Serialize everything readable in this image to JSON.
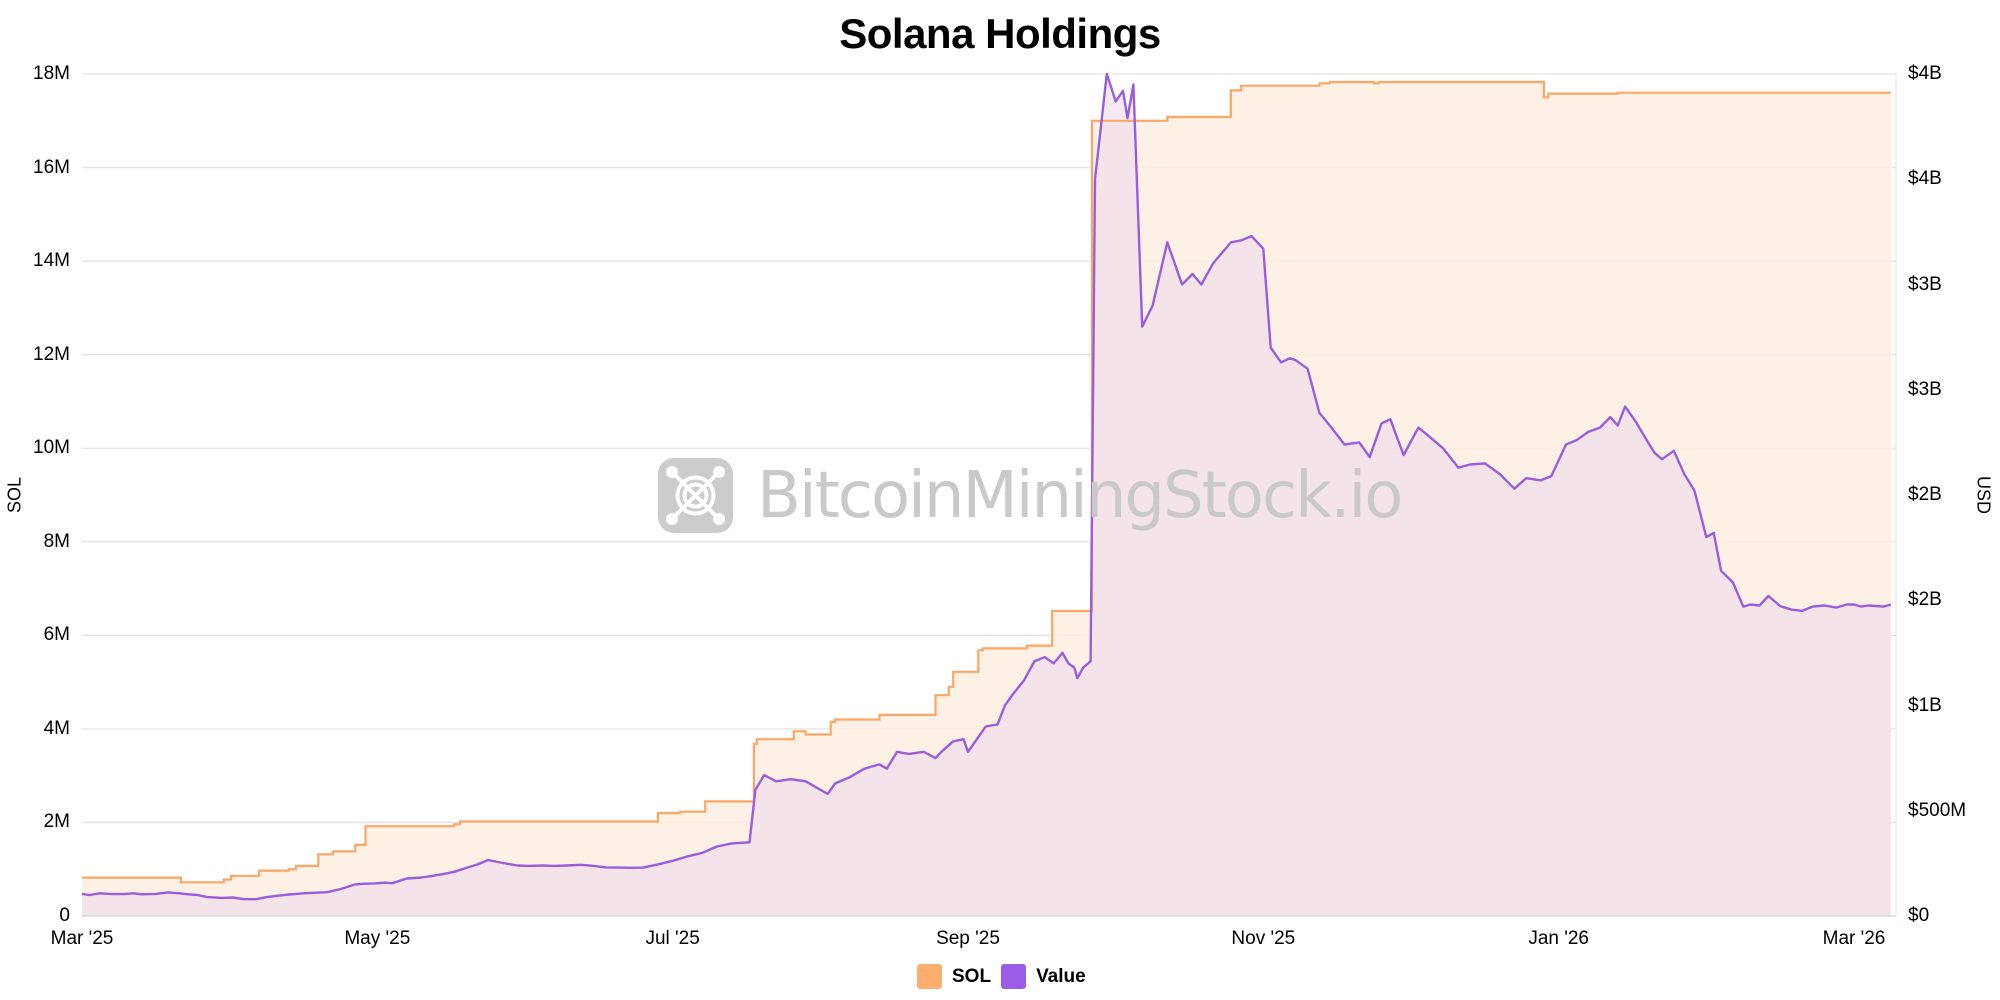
{
  "title": "Solana Holdings",
  "left_axis": {
    "title": "SOL",
    "ticks": [
      {
        "label": "0",
        "value": 0
      },
      {
        "label": "2M",
        "value": 2
      },
      {
        "label": "4M",
        "value": 4
      },
      {
        "label": "6M",
        "value": 6
      },
      {
        "label": "8M",
        "value": 8
      },
      {
        "label": "10M",
        "value": 10
      },
      {
        "label": "12M",
        "value": 12
      },
      {
        "label": "14M",
        "value": 14
      },
      {
        "label": "16M",
        "value": 16
      },
      {
        "label": "18M",
        "value": 18
      }
    ]
  },
  "right_axis": {
    "title": "USD",
    "ticks": [
      {
        "label": "$0",
        "value": 0
      },
      {
        "label": "$500M",
        "value": 0.5
      },
      {
        "label": "$1B",
        "value": 1.0
      },
      {
        "label": "$2B",
        "value": 1.5
      },
      {
        "label": "$2B",
        "value": 2.0
      },
      {
        "label": "$3B",
        "value": 2.5
      },
      {
        "label": "$3B",
        "value": 3.0
      },
      {
        "label": "$4B",
        "value": 3.5
      },
      {
        "label": "$4B",
        "value": 4.0
      }
    ]
  },
  "x_axis": {
    "ticks": [
      {
        "label": "Mar '25",
        "month": 0
      },
      {
        "label": "May '25",
        "month": 2
      },
      {
        "label": "Jul '25",
        "month": 4
      },
      {
        "label": "Sep '25",
        "month": 6
      },
      {
        "label": "Nov '25",
        "month": 8
      },
      {
        "label": "Jan '26",
        "month": 10
      },
      {
        "label": "Mar '26",
        "month": 12
      }
    ]
  },
  "legend": {
    "items": [
      {
        "label": "SOL",
        "color": "#fdad6e"
      },
      {
        "label": "Value",
        "color": "#9b5de5"
      }
    ]
  },
  "watermark": {
    "text": "BitcoinMiningStock.io"
  },
  "colors": {
    "sol_line": "#fca665",
    "sol_fill": "#fdeee2",
    "value_line": "#9a5ddf",
    "value_fill": "#efdcec",
    "grid": "#e3e3e3"
  },
  "chart_data": {
    "type": "line",
    "title": "Solana Holdings",
    "xlabel": "",
    "ylabel": "SOL",
    "ylabel_right": "USD",
    "ylim": [
      0,
      18000000
    ],
    "ylim_right": [
      0,
      4000000000
    ],
    "x_ticks": [
      "Mar '25",
      "May '25",
      "Jul '25",
      "Sep '25",
      "Nov '25",
      "Jan '26",
      "Mar '26"
    ],
    "grid": true,
    "legend_position": "bottom",
    "series": [
      {
        "name": "SOL",
        "axis": "left",
        "unit": "million SOL",
        "step": true,
        "points": [
          [
            0.0,
            0.82
          ],
          [
            0.67,
            0.82
          ],
          [
            0.67,
            0.72
          ],
          [
            0.96,
            0.72
          ],
          [
            0.96,
            0.78
          ],
          [
            1.01,
            0.78
          ],
          [
            1.01,
            0.86
          ],
          [
            1.2,
            0.86
          ],
          [
            1.2,
            0.97
          ],
          [
            1.4,
            0.97
          ],
          [
            1.4,
            1.0
          ],
          [
            1.45,
            1.0
          ],
          [
            1.45,
            1.07
          ],
          [
            1.6,
            1.07
          ],
          [
            1.6,
            1.32
          ],
          [
            1.7,
            1.32
          ],
          [
            1.7,
            1.38
          ],
          [
            1.85,
            1.38
          ],
          [
            1.85,
            1.52
          ],
          [
            1.92,
            1.52
          ],
          [
            1.92,
            1.92
          ],
          [
            2.52,
            1.92
          ],
          [
            2.52,
            1.96
          ],
          [
            2.56,
            1.96
          ],
          [
            2.56,
            2.02
          ],
          [
            3.9,
            2.02
          ],
          [
            3.9,
            2.2
          ],
          [
            4.05,
            2.2
          ],
          [
            4.05,
            2.23
          ],
          [
            4.22,
            2.23
          ],
          [
            4.22,
            2.45
          ],
          [
            4.55,
            2.45
          ],
          [
            4.55,
            3.68
          ],
          [
            4.57,
            3.68
          ],
          [
            4.57,
            3.78
          ],
          [
            4.82,
            3.78
          ],
          [
            4.82,
            3.95
          ],
          [
            4.9,
            3.95
          ],
          [
            4.9,
            3.88
          ],
          [
            5.07,
            3.88
          ],
          [
            5.07,
            4.15
          ],
          [
            5.1,
            4.15
          ],
          [
            5.1,
            4.2
          ],
          [
            5.4,
            4.2
          ],
          [
            5.4,
            4.3
          ],
          [
            5.78,
            4.3
          ],
          [
            5.78,
            4.72
          ],
          [
            5.87,
            4.72
          ],
          [
            5.87,
            4.9
          ],
          [
            5.9,
            4.9
          ],
          [
            5.9,
            5.22
          ],
          [
            6.07,
            5.22
          ],
          [
            6.07,
            5.68
          ],
          [
            6.1,
            5.68
          ],
          [
            6.1,
            5.72
          ],
          [
            6.4,
            5.72
          ],
          [
            6.4,
            5.78
          ],
          [
            6.57,
            5.78
          ],
          [
            6.57,
            6.52
          ],
          [
            6.84,
            6.52
          ],
          [
            6.84,
            17.0
          ],
          [
            7.35,
            17.0
          ],
          [
            7.35,
            17.08
          ],
          [
            7.78,
            17.08
          ],
          [
            7.78,
            17.65
          ],
          [
            7.85,
            17.65
          ],
          [
            7.85,
            17.75
          ],
          [
            8.38,
            17.75
          ],
          [
            8.38,
            17.8
          ],
          [
            8.45,
            17.8
          ],
          [
            8.45,
            17.83
          ],
          [
            8.75,
            17.83
          ],
          [
            8.75,
            17.8
          ],
          [
            8.78,
            17.8
          ],
          [
            8.78,
            17.83
          ],
          [
            9.9,
            17.83
          ],
          [
            9.9,
            17.5
          ],
          [
            9.93,
            17.5
          ],
          [
            9.93,
            17.58
          ],
          [
            10.4,
            17.58
          ],
          [
            10.4,
            17.6
          ],
          [
            12.25,
            17.6
          ]
        ]
      },
      {
        "name": "Value",
        "axis": "right",
        "unit": "billion USD",
        "points": [
          [
            0.0,
            0.105
          ],
          [
            0.05,
            0.1
          ],
          [
            0.12,
            0.108
          ],
          [
            0.2,
            0.104
          ],
          [
            0.28,
            0.104
          ],
          [
            0.35,
            0.108
          ],
          [
            0.4,
            0.103
          ],
          [
            0.5,
            0.105
          ],
          [
            0.58,
            0.112
          ],
          [
            0.66,
            0.108
          ],
          [
            0.72,
            0.103
          ],
          [
            0.78,
            0.1
          ],
          [
            0.85,
            0.09
          ],
          [
            0.95,
            0.086
          ],
          [
            1.02,
            0.088
          ],
          [
            1.1,
            0.08
          ],
          [
            1.18,
            0.08
          ],
          [
            1.25,
            0.09
          ],
          [
            1.3,
            0.094
          ],
          [
            1.4,
            0.102
          ],
          [
            1.45,
            0.105
          ],
          [
            1.5,
            0.108
          ],
          [
            1.62,
            0.112
          ],
          [
            1.66,
            0.113
          ],
          [
            1.75,
            0.128
          ],
          [
            1.85,
            0.15
          ],
          [
            1.9,
            0.153
          ],
          [
            1.98,
            0.155
          ],
          [
            2.05,
            0.158
          ],
          [
            2.1,
            0.156
          ],
          [
            2.2,
            0.178
          ],
          [
            2.3,
            0.183
          ],
          [
            2.35,
            0.188
          ],
          [
            2.45,
            0.2
          ],
          [
            2.52,
            0.21
          ],
          [
            2.6,
            0.228
          ],
          [
            2.68,
            0.245
          ],
          [
            2.75,
            0.266
          ],
          [
            2.85,
            0.252
          ],
          [
            2.95,
            0.24
          ],
          [
            3.02,
            0.238
          ],
          [
            3.12,
            0.24
          ],
          [
            3.2,
            0.238
          ],
          [
            3.28,
            0.24
          ],
          [
            3.38,
            0.243
          ],
          [
            3.45,
            0.239
          ],
          [
            3.55,
            0.231
          ],
          [
            3.65,
            0.23
          ],
          [
            3.7,
            0.229
          ],
          [
            3.8,
            0.23
          ],
          [
            3.9,
            0.245
          ],
          [
            4.0,
            0.262
          ],
          [
            4.1,
            0.283
          ],
          [
            4.2,
            0.3
          ],
          [
            4.3,
            0.33
          ],
          [
            4.4,
            0.345
          ],
          [
            4.52,
            0.35
          ],
          [
            4.56,
            0.6
          ],
          [
            4.62,
            0.67
          ],
          [
            4.7,
            0.64
          ],
          [
            4.8,
            0.65
          ],
          [
            4.9,
            0.64
          ],
          [
            5.0,
            0.6
          ],
          [
            5.05,
            0.58
          ],
          [
            5.1,
            0.63
          ],
          [
            5.2,
            0.66
          ],
          [
            5.3,
            0.7
          ],
          [
            5.4,
            0.72
          ],
          [
            5.45,
            0.7
          ],
          [
            5.52,
            0.78
          ],
          [
            5.6,
            0.77
          ],
          [
            5.7,
            0.78
          ],
          [
            5.78,
            0.75
          ],
          [
            5.82,
            0.78
          ],
          [
            5.9,
            0.83
          ],
          [
            5.97,
            0.84
          ],
          [
            6.0,
            0.78
          ],
          [
            6.05,
            0.83
          ],
          [
            6.12,
            0.9
          ],
          [
            6.2,
            0.91
          ],
          [
            6.25,
            1.0
          ],
          [
            6.3,
            1.05
          ],
          [
            6.38,
            1.12
          ],
          [
            6.45,
            1.21
          ],
          [
            6.52,
            1.23
          ],
          [
            6.58,
            1.2
          ],
          [
            6.64,
            1.25
          ],
          [
            6.68,
            1.2
          ],
          [
            6.72,
            1.18
          ],
          [
            6.74,
            1.13
          ],
          [
            6.78,
            1.18
          ],
          [
            6.83,
            1.21
          ],
          [
            6.86,
            3.5
          ],
          [
            6.9,
            3.75
          ],
          [
            6.94,
            4.0
          ],
          [
            7.0,
            3.87
          ],
          [
            7.05,
            3.92
          ],
          [
            7.08,
            3.79
          ],
          [
            7.12,
            3.95
          ],
          [
            7.18,
            2.8
          ],
          [
            7.25,
            2.9
          ],
          [
            7.35,
            3.2
          ],
          [
            7.45,
            3.0
          ],
          [
            7.52,
            3.05
          ],
          [
            7.58,
            3.0
          ],
          [
            7.66,
            3.1
          ],
          [
            7.72,
            3.15
          ],
          [
            7.78,
            3.2
          ],
          [
            7.85,
            3.21
          ],
          [
            7.92,
            3.23
          ],
          [
            8.0,
            3.17
          ],
          [
            8.05,
            2.7
          ],
          [
            8.12,
            2.63
          ],
          [
            8.18,
            2.65
          ],
          [
            8.22,
            2.64
          ],
          [
            8.3,
            2.6
          ],
          [
            8.38,
            2.39
          ],
          [
            8.45,
            2.33
          ],
          [
            8.55,
            2.24
          ],
          [
            8.65,
            2.25
          ],
          [
            8.72,
            2.18
          ],
          [
            8.8,
            2.34
          ],
          [
            8.86,
            2.36
          ],
          [
            8.95,
            2.19
          ],
          [
            9.05,
            2.32
          ],
          [
            9.12,
            2.28
          ],
          [
            9.22,
            2.22
          ],
          [
            9.32,
            2.13
          ],
          [
            9.4,
            2.145
          ],
          [
            9.5,
            2.15
          ],
          [
            9.6,
            2.1
          ],
          [
            9.7,
            2.03
          ],
          [
            9.78,
            2.08
          ],
          [
            9.88,
            2.07
          ],
          [
            9.95,
            2.09
          ],
          [
            10.05,
            2.24
          ],
          [
            10.12,
            2.26
          ],
          [
            10.2,
            2.3
          ],
          [
            10.28,
            2.32
          ],
          [
            10.35,
            2.37
          ],
          [
            10.4,
            2.33
          ],
          [
            10.45,
            2.42
          ],
          [
            10.52,
            2.35
          ],
          [
            10.58,
            2.28
          ],
          [
            10.65,
            2.2
          ],
          [
            10.7,
            2.17
          ],
          [
            10.78,
            2.21
          ],
          [
            10.85,
            2.1
          ],
          [
            10.92,
            2.02
          ],
          [
            11.0,
            1.8
          ],
          [
            11.05,
            1.82
          ],
          [
            11.1,
            1.64
          ],
          [
            11.18,
            1.585
          ],
          [
            11.25,
            1.47
          ],
          [
            11.3,
            1.48
          ],
          [
            11.36,
            1.475
          ],
          [
            11.42,
            1.52
          ],
          [
            11.5,
            1.472
          ],
          [
            11.58,
            1.455
          ],
          [
            11.65,
            1.45
          ],
          [
            11.72,
            1.47
          ],
          [
            11.8,
            1.475
          ],
          [
            11.88,
            1.465
          ],
          [
            11.95,
            1.48
          ],
          [
            12.0,
            1.48
          ],
          [
            12.05,
            1.47
          ],
          [
            12.1,
            1.475
          ],
          [
            12.2,
            1.47
          ],
          [
            12.25,
            1.48
          ]
        ]
      }
    ]
  }
}
